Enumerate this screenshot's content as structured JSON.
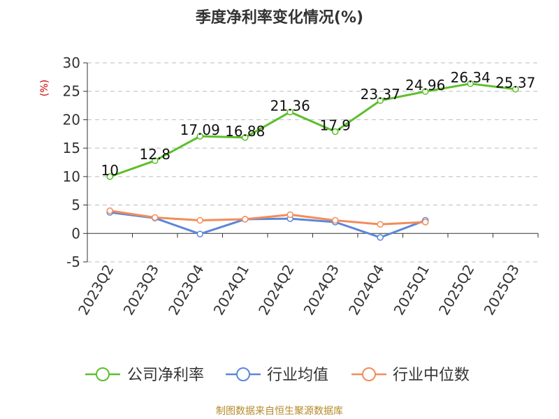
{
  "chart_data": {
    "type": "line",
    "title": "季度净利率变化情况(%)",
    "ylabel": "(%)",
    "xlabel": "",
    "categories": [
      "2023Q2",
      "2023Q3",
      "2023Q4",
      "2024Q1",
      "2024Q2",
      "2024Q3",
      "2024Q4",
      "2025Q1",
      "2025Q2",
      "2025Q3"
    ],
    "ylim": [
      -5,
      30
    ],
    "yticks": [
      -5,
      0,
      5,
      10,
      15,
      20,
      25,
      30
    ],
    "grid": true,
    "legend_position": "bottom",
    "series": [
      {
        "name": "公司净利率",
        "color": "#5cbf2a",
        "show_labels": true,
        "values": [
          10,
          12.8,
          17.09,
          16.88,
          21.36,
          17.9,
          23.37,
          24.96,
          26.34,
          25.37
        ]
      },
      {
        "name": "行业均值",
        "color": "#5b87d9",
        "show_labels": false,
        "values": [
          3.7,
          2.7,
          -0.1,
          2.5,
          2.6,
          2.0,
          -0.7,
          2.3,
          null,
          null
        ]
      },
      {
        "name": "行业中位数",
        "color": "#f28c5a",
        "show_labels": false,
        "values": [
          4.0,
          2.8,
          2.3,
          2.5,
          3.3,
          2.3,
          1.6,
          2.0,
          null,
          null
        ]
      }
    ]
  },
  "source_text": "制图数据来自恒生聚源数据库"
}
